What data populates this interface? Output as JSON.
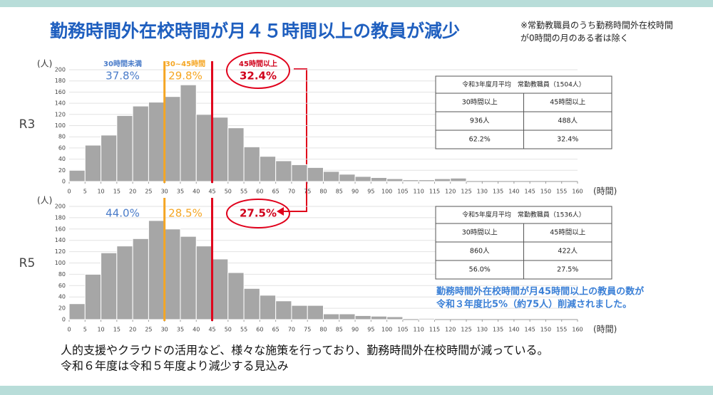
{
  "title": "勤務時間外在校時間が月４５時間以上の教員が減少",
  "note": [
    "※常勤教職員のうち勤務時間外在校時間",
    "が0時間の月のある者は除く"
  ],
  "chart_data": [
    {
      "type": "histogram",
      "row_label": "R3",
      "y_label": "(人)",
      "x_label": "(時間)",
      "bins": [
        0,
        5,
        10,
        15,
        20,
        25,
        30,
        35,
        40,
        45,
        50,
        55,
        60,
        65,
        70,
        75,
        80,
        85,
        90,
        95,
        100,
        105,
        110,
        115,
        120,
        125,
        130,
        135,
        140,
        145,
        150,
        155,
        160
      ],
      "values": [
        20,
        65,
        83,
        118,
        135,
        142,
        152,
        173,
        120,
        115,
        96,
        62,
        45,
        37,
        30,
        25,
        18,
        13,
        9,
        7,
        5,
        3,
        3,
        5,
        6,
        0,
        0,
        0,
        0,
        0,
        0,
        0
      ],
      "color": "#a6a6a6",
      "xlim": [
        0,
        160
      ],
      "ylim": [
        0,
        200
      ],
      "xticks": [
        0,
        5,
        10,
        15,
        20,
        25,
        30,
        35,
        40,
        45,
        50,
        55,
        60,
        65,
        70,
        75,
        80,
        85,
        90,
        95,
        100,
        105,
        110,
        115,
        120,
        125,
        130,
        135,
        140,
        145,
        150,
        155,
        160
      ],
      "yticks": [
        0,
        20,
        40,
        60,
        80,
        100,
        120,
        140,
        160,
        180,
        200
      ],
      "grid": true,
      "markers": [
        {
          "x": 30,
          "color": "#f5a623"
        },
        {
          "x": 45,
          "color": "#e0001b"
        }
      ],
      "annotations": [
        {
          "title": "30時間未満",
          "text": "37.8%",
          "color": "#4a7cc9"
        },
        {
          "title": "30~45時間",
          "text": "29.8%",
          "color": "#f5a623"
        },
        {
          "title": "45時間以上",
          "text": "32.4%",
          "color": "#d0021b"
        }
      ]
    },
    {
      "type": "histogram",
      "row_label": "R5",
      "y_label": "(人)",
      "x_label": "(時間)",
      "bins": [
        0,
        5,
        10,
        15,
        20,
        25,
        30,
        35,
        40,
        45,
        50,
        55,
        60,
        65,
        70,
        75,
        80,
        85,
        90,
        95,
        100,
        105,
        110,
        115,
        120,
        125,
        130,
        135,
        140,
        145,
        150,
        155,
        160
      ],
      "values": [
        28,
        80,
        118,
        130,
        143,
        175,
        160,
        147,
        130,
        107,
        83,
        55,
        43,
        33,
        25,
        25,
        10,
        10,
        7,
        6,
        5,
        0,
        2,
        0,
        0,
        0,
        0,
        0,
        0,
        0,
        0,
        0
      ],
      "color": "#a6a6a6",
      "xlim": [
        0,
        160
      ],
      "ylim": [
        0,
        200
      ],
      "xticks": [
        0,
        5,
        10,
        15,
        20,
        25,
        30,
        35,
        40,
        45,
        50,
        55,
        60,
        65,
        70,
        75,
        80,
        85,
        90,
        95,
        100,
        105,
        110,
        115,
        120,
        125,
        130,
        135,
        140,
        145,
        150,
        155,
        160
      ],
      "yticks": [
        0,
        20,
        40,
        60,
        80,
        100,
        120,
        140,
        160,
        180,
        200
      ],
      "grid": true,
      "markers": [
        {
          "x": 30,
          "color": "#f5a623"
        },
        {
          "x": 45,
          "color": "#e0001b"
        }
      ],
      "annotations": [
        {
          "text": "44.0%",
          "color": "#4a7cc9"
        },
        {
          "text": "28.5%",
          "color": "#f5a623"
        },
        {
          "text": "27.5%",
          "color": "#d0021b"
        }
      ]
    }
  ],
  "tables": [
    {
      "caption": "令和3年度月平均　常勤教職員（1504人）",
      "header": [
        "30時間以上",
        "45時間以上"
      ],
      "rows": [
        [
          "936人",
          "488人"
        ],
        [
          "62.2%",
          "32.4%"
        ]
      ]
    },
    {
      "caption": "令和5年度月平均　常勤教職員（1536人）",
      "header": [
        "30時間以上",
        "45時間以上"
      ],
      "rows": [
        [
          "860人",
          "422人"
        ],
        [
          "56.0%",
          "27.5%"
        ]
      ]
    }
  ],
  "callout": [
    "勤務時間外在校時間が月45時間以上の教員の数が",
    "令和３年度比5%（約75人）削減されました。"
  ],
  "footer": [
    "人的支援やクラウドの活用など、様々な施策を行っており、勤務時間外在校時間が減っている。",
    "令和６年度は令和５年度より減少する見込み"
  ]
}
